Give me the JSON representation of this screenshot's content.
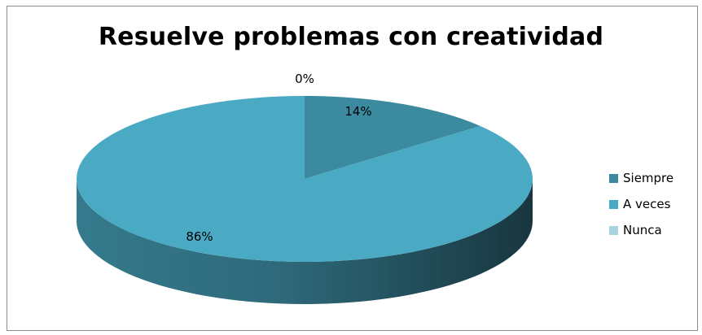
{
  "chart_data": {
    "type": "pie",
    "title": "Resuelve problemas con creatividad",
    "categories": [
      "Siempre",
      "A veces",
      "Nunca"
    ],
    "values": [
      14,
      86,
      0
    ],
    "data_labels": [
      "14%",
      "86%",
      "0%"
    ],
    "colors": [
      "#3b8aa0",
      "#4aaac4",
      "#a8d4e0"
    ],
    "legend_position": "right",
    "style": "3d-pie"
  }
}
